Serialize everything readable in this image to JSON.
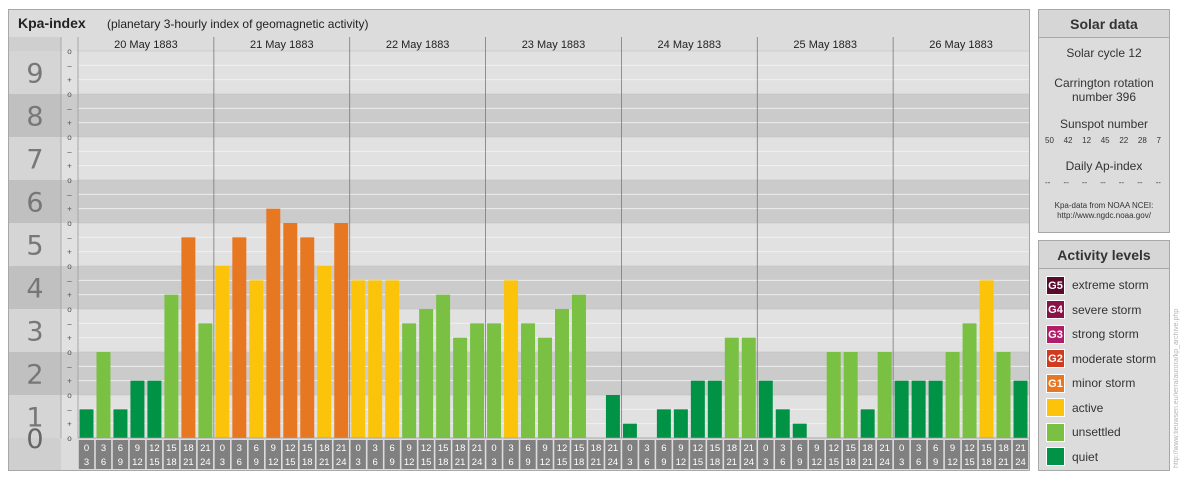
{
  "header": {
    "title": "Kpa-index",
    "subtitle": "(planetary 3-hourly index of geomagnetic activity)"
  },
  "chart_data": {
    "type": "bar",
    "title": "Kpa-index",
    "subtitle": "(planetary 3-hourly index of geomagnetic activity)",
    "days": [
      "20 May 1883",
      "21 May 1883",
      "22 May 1883",
      "23 May 1883",
      "24 May 1883",
      "25 May 1883",
      "26 May 1883"
    ],
    "interval_start_labels": [
      "0",
      "3",
      "6",
      "9",
      "12",
      "15",
      "18",
      "21"
    ],
    "interval_end_labels": [
      "3",
      "6",
      "9",
      "12",
      "15",
      "18",
      "21",
      "24"
    ],
    "y_tick_labels": [
      "0",
      "1",
      "2",
      "3",
      "4",
      "5",
      "6",
      "7",
      "8",
      "9"
    ],
    "y_minor_labels": [
      "o",
      "+",
      "–"
    ],
    "ylim": [
      0,
      9
    ],
    "values": [
      0.667,
      2.0,
      0.667,
      1.333,
      1.333,
      3.333,
      4.667,
      2.667,
      4.0,
      4.667,
      3.667,
      5.333,
      5.0,
      4.667,
      4.0,
      5.0,
      3.667,
      3.667,
      3.667,
      2.667,
      3.0,
      3.333,
      2.333,
      2.667,
      2.667,
      3.667,
      2.667,
      2.333,
      3.0,
      3.333,
      0.0,
      1.0,
      0.333,
      0.0,
      0.667,
      0.667,
      1.333,
      1.333,
      2.333,
      2.333,
      1.333,
      0.667,
      0.333,
      0.0,
      2.0,
      2.0,
      0.667,
      2.0,
      1.333,
      1.333,
      1.333,
      2.0,
      2.667,
      3.667,
      2.0,
      1.333
    ],
    "level_colors": {
      "quiet": "#009245",
      "unsettled": "#7ac143",
      "active": "#fbc40a",
      "minor": "#e87722"
    },
    "grid": true
  },
  "solar": {
    "heading": "Solar data",
    "cycle": "Solar cycle 12",
    "carrington_1": "Carrington rotation",
    "carrington_2": "number 396",
    "sunspot_heading": "Sunspot number",
    "sunspot_values": [
      "50",
      "42",
      "12",
      "45",
      "22",
      "28",
      "7"
    ],
    "ap_heading": "Daily Ap-index",
    "ap_values": [
      "--",
      "--",
      "--",
      "--",
      "--",
      "--",
      "--"
    ],
    "source_1": "Kpa-data from NOAA NCEI:",
    "source_2": "http://www.ngdc.noaa.gov/"
  },
  "activity": {
    "heading": "Activity levels",
    "items": [
      {
        "code": "G5",
        "label": "extreme storm",
        "color": "#5c0a2c"
      },
      {
        "code": "G4",
        "label": "severe storm",
        "color": "#8b1249"
      },
      {
        "code": "G3",
        "label": "strong storm",
        "color": "#b21d6a"
      },
      {
        "code": "G2",
        "label": "moderate storm",
        "color": "#d23a1f"
      },
      {
        "code": "G1",
        "label": "minor storm",
        "color": "#e87722"
      },
      {
        "code": "",
        "label": "active",
        "color": "#fbc40a"
      },
      {
        "code": "",
        "label": "unsettled",
        "color": "#7ac143"
      },
      {
        "code": "",
        "label": "quiet",
        "color": "#009245"
      }
    ]
  },
  "credit": "http://www.tieuwsen.eu/ierra/aurora/kp_archive.php"
}
